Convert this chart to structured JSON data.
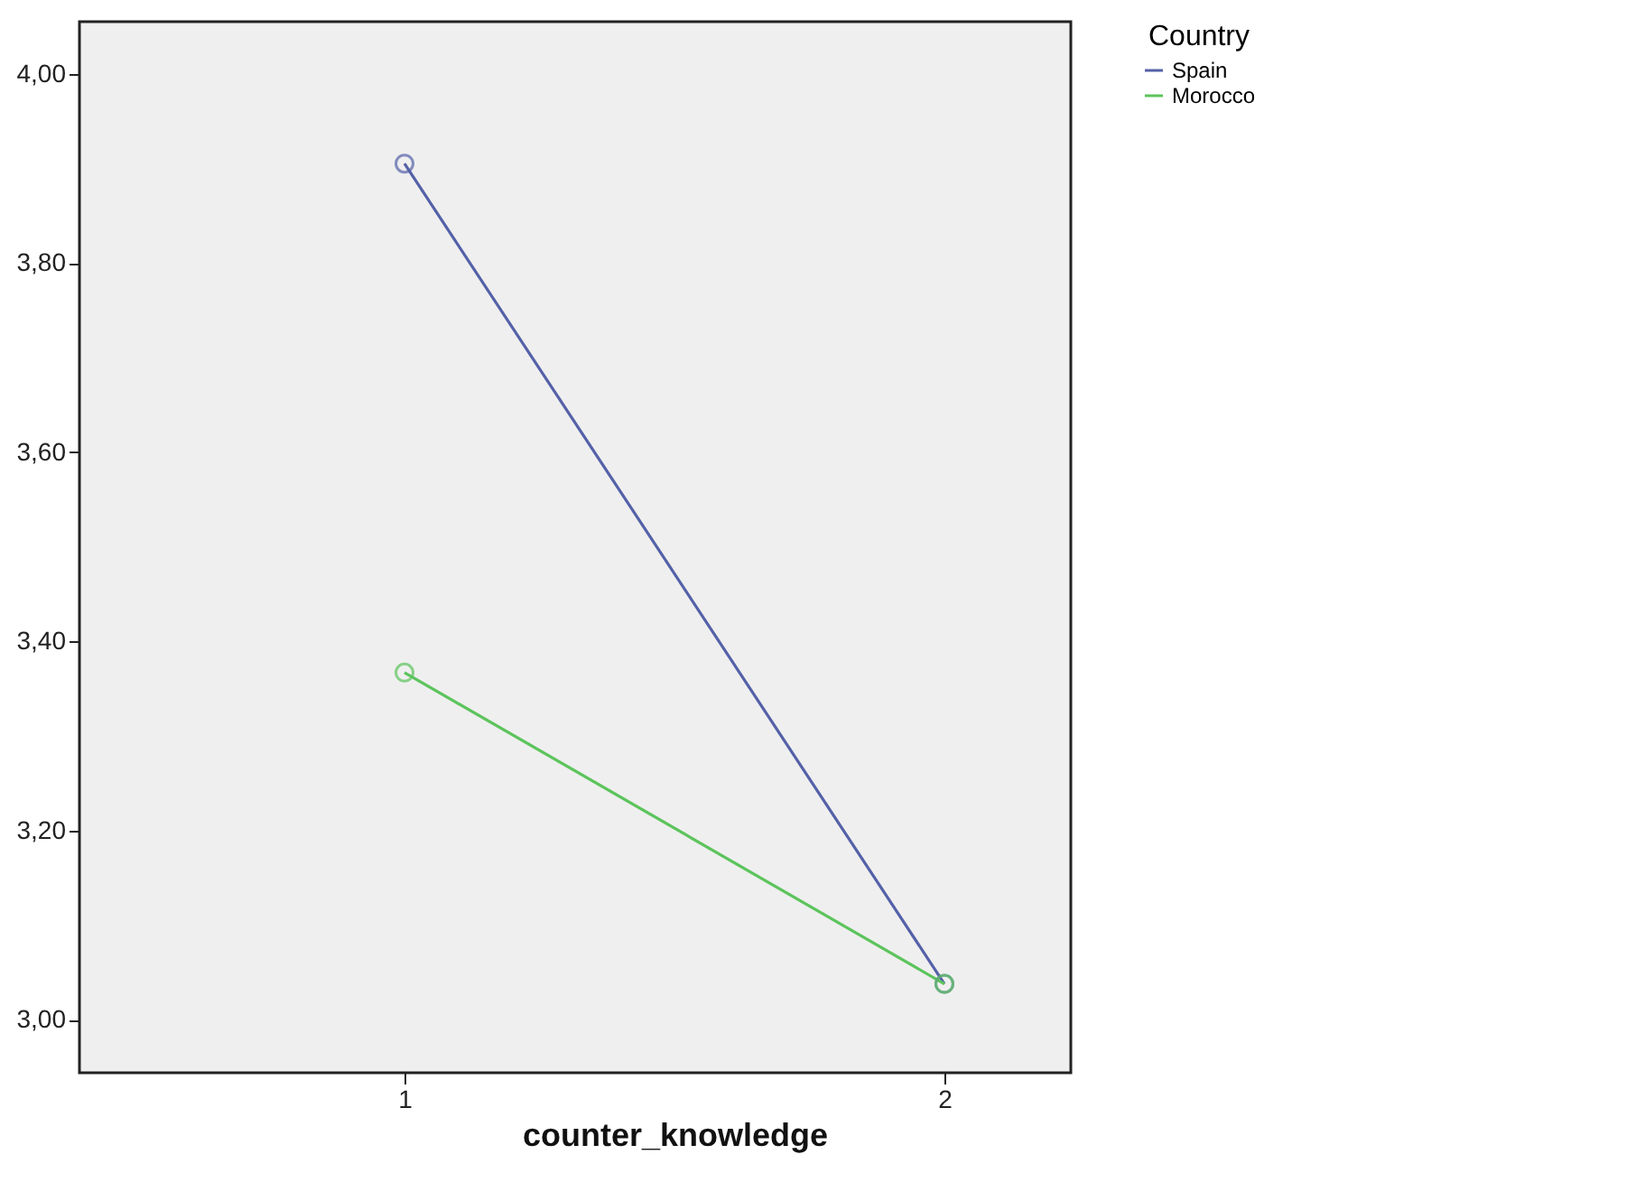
{
  "chart_data": {
    "type": "line",
    "xlabel": "counter_knowledge",
    "legend_title": "Country",
    "categories": [
      "1",
      "2"
    ],
    "series": [
      {
        "name": "Spain",
        "color": "#5461a8",
        "values": [
          3.905,
          3.038
        ]
      },
      {
        "name": "Morocco",
        "color": "#5cc45c",
        "values": [
          3.367,
          3.038
        ]
      }
    ],
    "ylim": [
      2.944,
      4.055
    ],
    "yticks": [
      {
        "value": 3,
        "label": "3,00"
      },
      {
        "value": 3.2,
        "label": "3,20"
      },
      {
        "value": 3.4,
        "label": "3,40"
      },
      {
        "value": 3.6,
        "label": "3,60"
      },
      {
        "value": 3.8,
        "label": "3,80"
      },
      {
        "value": 4,
        "label": "4,00"
      }
    ],
    "grid": false,
    "legend": "top right",
    "marker": "circle",
    "line_style": "solid"
  }
}
